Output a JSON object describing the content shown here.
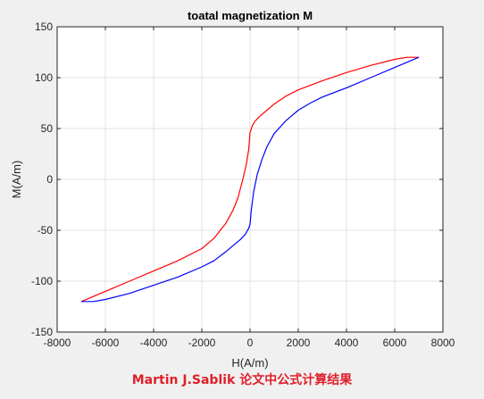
{
  "chart_data": {
    "type": "line",
    "title": "toatal magnetization M",
    "xlabel": "H(A/m)",
    "ylabel": "M(A/m)",
    "xlim": [
      -8000,
      8000
    ],
    "ylim": [
      -150,
      150
    ],
    "xticks": [
      -8000,
      -6000,
      -4000,
      -2000,
      0,
      2000,
      4000,
      6000,
      8000
    ],
    "yticks": [
      -150,
      -100,
      -50,
      0,
      50,
      100,
      150
    ],
    "grid": true,
    "series": [
      {
        "color": "#ff0000",
        "x": [
          -7000,
          -6000,
          -5000,
          -4000,
          -3000,
          -2000,
          -1500,
          -1000,
          -700,
          -500,
          -300,
          -150,
          -50,
          0,
          30,
          100,
          200,
          400,
          700,
          1000,
          1500,
          2000,
          3000,
          4000,
          5000,
          6000,
          6500,
          7000
        ],
        "y": [
          -120,
          -110,
          -100,
          -90,
          -80,
          -68,
          -58,
          -43,
          -30,
          -18,
          0,
          15,
          30,
          46,
          48,
          53,
          57,
          62,
          68,
          74,
          82,
          88,
          97,
          105,
          112,
          118,
          120,
          120
        ]
      },
      {
        "color": "#0000ff",
        "x": [
          -7000,
          -6500,
          -6000,
          -5000,
          -4000,
          -3000,
          -2000,
          -1500,
          -1000,
          -700,
          -400,
          -200,
          -50,
          0,
          50,
          150,
          300,
          500,
          700,
          1000,
          1500,
          2000,
          2500,
          3000,
          4000,
          5000,
          6000,
          7000
        ],
        "y": [
          -120,
          -120,
          -118,
          -112,
          -104,
          -96,
          -86,
          -80,
          -71,
          -65,
          -59,
          -54,
          -48,
          -44,
          -30,
          -12,
          5,
          20,
          32,
          45,
          58,
          68,
          75,
          81,
          90,
          100,
          110,
          120
        ]
      }
    ]
  },
  "caption": "Martin J.Sablik 论文中公式计算结果",
  "colors": {
    "background": "#f0f0f0",
    "axes_bg": "#ffffff",
    "grid": "#e3e3e3",
    "caption": "#e0202a"
  }
}
